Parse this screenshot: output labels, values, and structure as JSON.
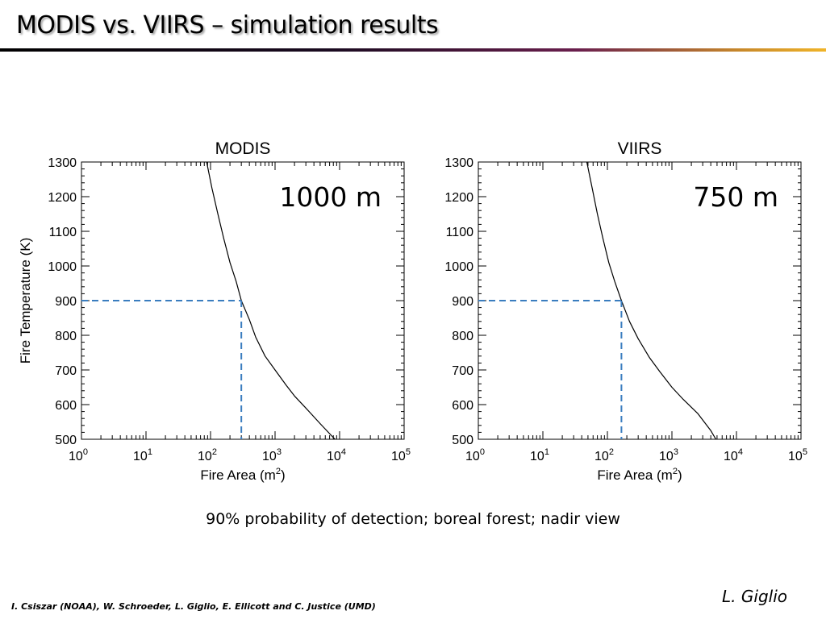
{
  "slide": {
    "title": "MODIS vs. VIIRS – simulation results",
    "caption": "90% probability of detection; boreal forest; nadir view",
    "author": "L. Giglio",
    "footer": "I. Csiszar (NOAA), W. Schroeder, L. Giglio, E. Ellicott and C. Justice (UMD)"
  },
  "colors": {
    "curve": "#000000",
    "guide": "#3a7dbf"
  },
  "chart_data": [
    {
      "type": "line",
      "title": "MODIS",
      "annotation": "1000 m",
      "xlabel": "Fire Area (m",
      "xlabel_sup": "2",
      "xlabel_end": ")",
      "ylabel": "Fire Temperature (K)",
      "x_scale": "log",
      "xlim": [
        1,
        100000
      ],
      "ylim": [
        500,
        1300
      ],
      "x_ticks": [
        1,
        10,
        100,
        1000,
        10000,
        100000
      ],
      "x_tick_labels": [
        {
          "base": "10",
          "exp": "0"
        },
        {
          "base": "10",
          "exp": "1"
        },
        {
          "base": "10",
          "exp": "2"
        },
        {
          "base": "10",
          "exp": "3"
        },
        {
          "base": "10",
          "exp": "4"
        },
        {
          "base": "10",
          "exp": "5"
        }
      ],
      "y_ticks": [
        500,
        600,
        700,
        800,
        900,
        1000,
        1100,
        1200,
        1300
      ],
      "y_tick_labels": [
        "500",
        "600",
        "700",
        "800",
        "900",
        "1000",
        "1100",
        "1200",
        "1300"
      ],
      "curve": {
        "x": [
          87,
          105,
          130,
          160,
          200,
          250,
          300,
          400,
          500,
          700,
          1000,
          1500,
          2000,
          3000,
          5000,
          8000,
          8500
        ],
        "y": [
          1300,
          1225,
          1150,
          1080,
          1010,
          955,
          900,
          845,
          795,
          740,
          700,
          655,
          625,
          590,
          545,
          505,
          500
        ]
      },
      "guide": {
        "x": 300,
        "y": 900
      }
    },
    {
      "type": "line",
      "title": "VIIRS",
      "annotation": "750 m",
      "xlabel": "Fire Area (m",
      "xlabel_sup": "2",
      "xlabel_end": ")",
      "ylabel": "",
      "x_scale": "log",
      "xlim": [
        1,
        100000
      ],
      "ylim": [
        500,
        1300
      ],
      "x_ticks": [
        1,
        10,
        100,
        1000,
        10000,
        100000
      ],
      "x_tick_labels": [
        {
          "base": "10",
          "exp": "0"
        },
        {
          "base": "10",
          "exp": "1"
        },
        {
          "base": "10",
          "exp": "2"
        },
        {
          "base": "10",
          "exp": "3"
        },
        {
          "base": "10",
          "exp": "4"
        },
        {
          "base": "10",
          "exp": "5"
        }
      ],
      "y_ticks": [
        500,
        600,
        700,
        800,
        900,
        1000,
        1100,
        1200,
        1300
      ],
      "y_tick_labels": [
        "500",
        "600",
        "700",
        "800",
        "900",
        "1000",
        "1100",
        "1200",
        "1300"
      ],
      "curve": {
        "x": [
          48,
          58,
          70,
          85,
          105,
          130,
          165,
          220,
          300,
          450,
          650,
          1000,
          1500,
          2500,
          4000,
          4800
        ],
        "y": [
          1300,
          1225,
          1150,
          1080,
          1010,
          955,
          900,
          840,
          790,
          735,
          695,
          650,
          615,
          575,
          525,
          500
        ]
      },
      "guide": {
        "x": 165,
        "y": 900
      }
    }
  ]
}
